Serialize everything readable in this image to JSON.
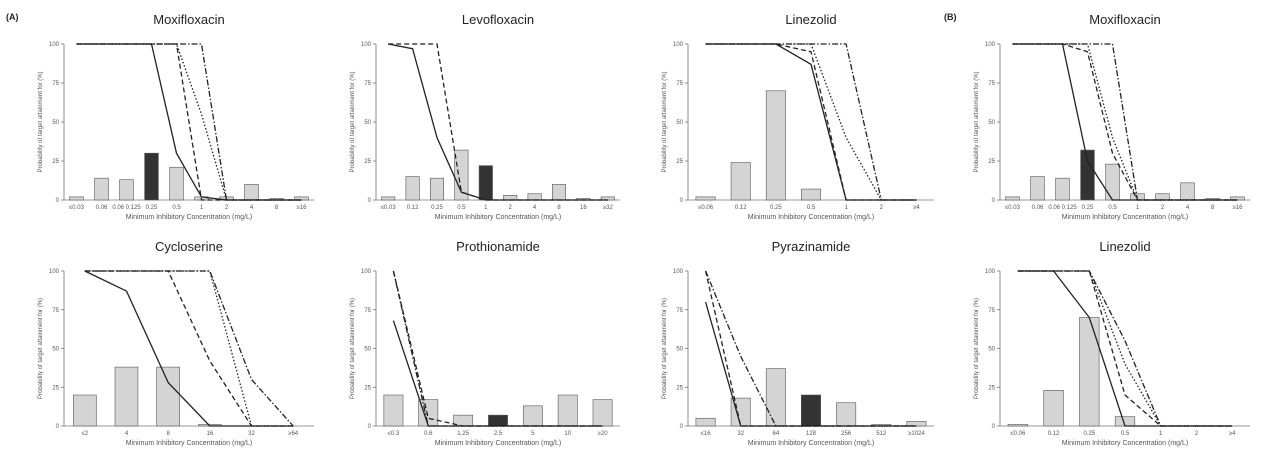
{
  "figure": {
    "panel_labels": [
      "(A)",
      "(B)"
    ],
    "ylabel": "Probability of target attainment for (%)",
    "xlabel": "Minimum Inhibitory Concentration (mg/L)",
    "y_ticks": [
      "0",
      "25",
      "50",
      "75",
      "100"
    ],
    "colors": {
      "bar_light": "#d4d4d4",
      "bar_dark": "#333333",
      "bar_stroke": "#555555",
      "line": "#222222"
    }
  },
  "chart_data": [
    {
      "type": "bar",
      "group": "A",
      "title": "Moxifloxacin",
      "categories": [
        "0.0625",
        "0.125",
        "0.25",
        "0.5",
        "1",
        "2",
        "4",
        "8",
        "16",
        "32"
      ],
      "tick_labels": [
        "≤0.03",
        "0.06",
        "0.06 0.125",
        "0.25",
        "0.5",
        "1",
        "2",
        "4",
        "8",
        "≥16"
      ],
      "values": [
        2,
        14,
        13,
        30,
        21,
        2,
        2,
        10,
        1,
        2
      ],
      "highlight": [
        3
      ],
      "ylim": [
        0,
        100
      ],
      "series": [
        {
          "style": "solid",
          "values": [
            100,
            100,
            100,
            100,
            30,
            2,
            0,
            0,
            0,
            0
          ]
        },
        {
          "style": "dashed",
          "values": [
            100,
            100,
            100,
            100,
            100,
            0,
            0,
            0,
            0,
            0
          ]
        },
        {
          "style": "dotted",
          "values": [
            100,
            100,
            100,
            100,
            100,
            55,
            0,
            0,
            0,
            0
          ]
        },
        {
          "style": "dashdot",
          "values": [
            100,
            100,
            100,
            100,
            100,
            100,
            0,
            0,
            0,
            0
          ]
        }
      ]
    },
    {
      "type": "bar",
      "group": "A",
      "title": "Levofloxacin",
      "categories": [
        "0.06",
        "0.125",
        "0.25",
        "0.5",
        "1",
        "2",
        "4",
        "8",
        "16",
        "32"
      ],
      "tick_labels": [
        "≤0.03",
        "0.12",
        "0.25",
        "0.5",
        "1",
        "2",
        "4",
        "8",
        "16",
        "≥32"
      ],
      "values": [
        2,
        15,
        14,
        32,
        22,
        3,
        4,
        10,
        1,
        2
      ],
      "highlight": [
        4
      ],
      "ylim": [
        0,
        100
      ],
      "series": [
        {
          "style": "solid",
          "values": [
            100,
            97,
            40,
            5,
            0,
            0,
            0,
            0,
            0,
            0
          ]
        },
        {
          "style": "dashed",
          "values": [
            100,
            100,
            100,
            5,
            0,
            0,
            0,
            0,
            0,
            0
          ]
        }
      ]
    },
    {
      "type": "bar",
      "group": "A",
      "title": "Linezolid",
      "categories": [
        "0.06",
        "0.125",
        "0.25",
        "0.5",
        "1",
        "2",
        "4"
      ],
      "tick_labels": [
        "≤0.06",
        "0.12",
        "0.25",
        "0.5",
        "1",
        "2",
        "≥4"
      ],
      "values": [
        2,
        24,
        70,
        7,
        0,
        0,
        0
      ],
      "highlight": [],
      "ylim": [
        0,
        100
      ],
      "series": [
        {
          "style": "solid",
          "values": [
            100,
            100,
            100,
            87,
            0,
            0,
            0
          ]
        },
        {
          "style": "dashed",
          "values": [
            100,
            100,
            100,
            95,
            0,
            0,
            0
          ]
        },
        {
          "style": "dotted",
          "values": [
            100,
            100,
            100,
            100,
            40,
            0,
            0
          ]
        },
        {
          "style": "dashdot",
          "values": [
            100,
            100,
            100,
            100,
            100,
            0,
            0
          ]
        }
      ]
    },
    {
      "type": "bar",
      "group": "B",
      "title": "Moxifloxacin",
      "categories": [
        "0.0625",
        "0.125",
        "0.25",
        "0.5",
        "1",
        "2",
        "4",
        "8",
        "16",
        "32"
      ],
      "tick_labels": [
        "≤0.03",
        "0.06",
        "0.06 0.125",
        "0.25",
        "0.5",
        "1",
        "2",
        "4",
        "8",
        "≥16"
      ],
      "values": [
        2,
        15,
        14,
        32,
        23,
        4,
        4,
        11,
        1,
        2
      ],
      "highlight": [
        3
      ],
      "ylim": [
        0,
        100
      ],
      "series": [
        {
          "style": "solid",
          "values": [
            100,
            100,
            100,
            25,
            0,
            0,
            0,
            0,
            0,
            0
          ]
        },
        {
          "style": "dashed",
          "values": [
            100,
            100,
            100,
            95,
            30,
            0,
            0,
            0,
            0,
            0
          ]
        },
        {
          "style": "dotted",
          "values": [
            100,
            100,
            100,
            100,
            40,
            0,
            0,
            0,
            0,
            0
          ]
        },
        {
          "style": "dashdot",
          "values": [
            100,
            100,
            100,
            100,
            100,
            0,
            0,
            0,
            0,
            0
          ]
        }
      ]
    },
    {
      "type": "bar",
      "group": "A",
      "title": "Cycloserine",
      "categories": [
        "2",
        "4",
        "8",
        "16",
        "32",
        "64"
      ],
      "tick_labels": [
        "≤2",
        "4",
        "8",
        "16",
        "32",
        "≥64"
      ],
      "values": [
        20,
        38,
        38,
        1,
        0,
        0
      ],
      "highlight": [],
      "ylim": [
        0,
        100
      ],
      "series": [
        {
          "style": "solid",
          "values": [
            100,
            87,
            28,
            0,
            0,
            0
          ]
        },
        {
          "style": "dashed",
          "values": [
            100,
            100,
            100,
            42,
            0,
            0
          ]
        },
        {
          "style": "dotted",
          "values": [
            100,
            100,
            100,
            100,
            0,
            0
          ]
        },
        {
          "style": "dashdot",
          "values": [
            100,
            100,
            100,
            100,
            30,
            0
          ]
        }
      ]
    },
    {
      "type": "bar",
      "group": "A",
      "title": "Prothionamide",
      "categories": [
        "0.3",
        "0.6",
        "1.25",
        "2.5",
        "5",
        "10",
        "20"
      ],
      "tick_labels": [
        "≤0.3",
        "0.6",
        "1.25",
        "2.5",
        "5",
        "10",
        "≥20"
      ],
      "values": [
        20,
        17,
        7,
        7,
        13,
        20,
        17
      ],
      "highlight": [
        3
      ],
      "ylim": [
        0,
        100
      ],
      "series": [
        {
          "style": "solid",
          "values": [
            68,
            0,
            0,
            0,
            0,
            0,
            0
          ]
        },
        {
          "style": "dashed",
          "values": [
            100,
            5,
            0,
            0,
            0,
            0,
            0
          ]
        },
        {
          "style": "dashdot",
          "values": [
            100,
            0,
            0,
            0,
            0,
            0,
            0
          ]
        }
      ]
    },
    {
      "type": "bar",
      "group": "A",
      "title": "Pyrazinamide",
      "categories": [
        "16",
        "32",
        "64",
        "128",
        "256",
        "512",
        "1024"
      ],
      "tick_labels": [
        "≤16",
        "32",
        "64",
        "128",
        "256",
        "512",
        "≥1024"
      ],
      "values": [
        5,
        18,
        37,
        20,
        15,
        1,
        3
      ],
      "highlight": [
        3
      ],
      "ylim": [
        0,
        100
      ],
      "series": [
        {
          "style": "solid",
          "values": [
            80,
            0,
            0,
            0,
            0,
            0,
            0
          ]
        },
        {
          "style": "dashed",
          "values": [
            100,
            0,
            0,
            0,
            0,
            0,
            0
          ]
        },
        {
          "style": "dashdot",
          "values": [
            100,
            45,
            0,
            0,
            0,
            0,
            0
          ]
        }
      ]
    },
    {
      "type": "bar",
      "group": "B",
      "title": "Linezolid",
      "categories": [
        "0.06",
        "0.125",
        "0.25",
        "0.5",
        "1",
        "2",
        "4"
      ],
      "tick_labels": [
        "≤0.06",
        "0.12",
        "0.25",
        "0.5",
        "1",
        "2",
        "≥4"
      ],
      "values": [
        1,
        23,
        70,
        6,
        0,
        0,
        0
      ],
      "highlight": [],
      "ylim": [
        0,
        100
      ],
      "series": [
        {
          "style": "solid",
          "values": [
            100,
            100,
            70,
            0,
            0,
            0,
            0
          ]
        },
        {
          "style": "dashed",
          "values": [
            100,
            100,
            100,
            20,
            0,
            0,
            0
          ]
        },
        {
          "style": "dotted",
          "values": [
            100,
            100,
            100,
            40,
            0,
            0,
            0
          ]
        },
        {
          "style": "dashdot",
          "values": [
            100,
            100,
            100,
            55,
            0,
            0,
            0
          ]
        }
      ]
    }
  ]
}
